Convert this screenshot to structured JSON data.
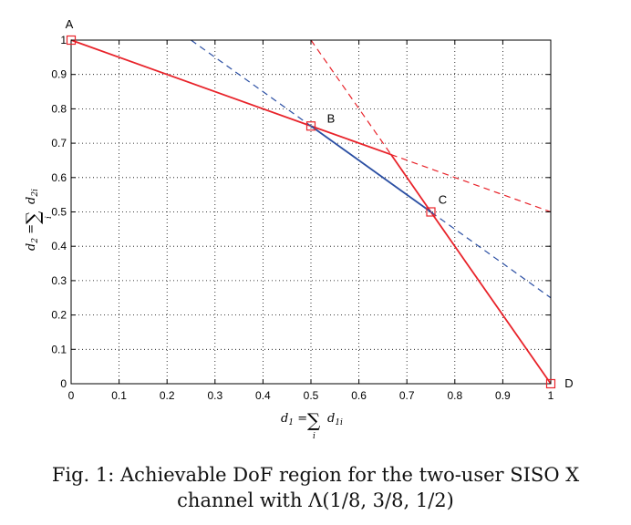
{
  "chart_data": {
    "type": "line",
    "xlabel": "d₁ = ∑ᵢ d₁ᵢ",
    "ylabel": "d₂ = ∑ᵢ d₂ᵢ",
    "xlim": [
      0,
      1
    ],
    "ylim": [
      0,
      1
    ],
    "xticks": [
      0,
      0.1,
      0.2,
      0.3,
      0.4,
      0.5,
      0.6,
      0.7,
      0.8,
      0.9,
      1
    ],
    "yticks": [
      0,
      0.1,
      0.2,
      0.3,
      0.4,
      0.5,
      0.6,
      0.7,
      0.8,
      0.9,
      1
    ],
    "grid": true,
    "series": [
      {
        "color": "#e8232a",
        "style": "solid",
        "x": [
          0,
          0.5,
          0.667,
          0.75,
          1
        ],
        "y": [
          1,
          0.75,
          0.667,
          0.5,
          0
        ]
      },
      {
        "color": "#2b4fa3",
        "style": "solid",
        "x": [
          0.5,
          0.75
        ],
        "y": [
          0.75,
          0.5
        ]
      },
      {
        "color": "#2b4fa3",
        "style": "dashed",
        "x": [
          0.25,
          1
        ],
        "y": [
          1,
          0.25
        ]
      },
      {
        "color": "#e8232a",
        "style": "dashed",
        "x": [
          0.5,
          0.667
        ],
        "y": [
          1,
          0.667
        ]
      },
      {
        "color": "#e8232a",
        "style": "dashed",
        "x": [
          0.667,
          1
        ],
        "y": [
          0.667,
          0.5
        ]
      }
    ],
    "points": [
      {
        "label": "A",
        "x": 0,
        "y": 1
      },
      {
        "label": "B",
        "x": 0.5,
        "y": 0.75
      },
      {
        "label": "C",
        "x": 0.75,
        "y": 0.5
      },
      {
        "label": "D",
        "x": 1,
        "y": 0
      }
    ]
  },
  "caption": {
    "line1": "Fig. 1: Achievable DoF region for the two-user SISO X",
    "line2": "channel with Λ(1/8, 3/8, 1/2)"
  }
}
